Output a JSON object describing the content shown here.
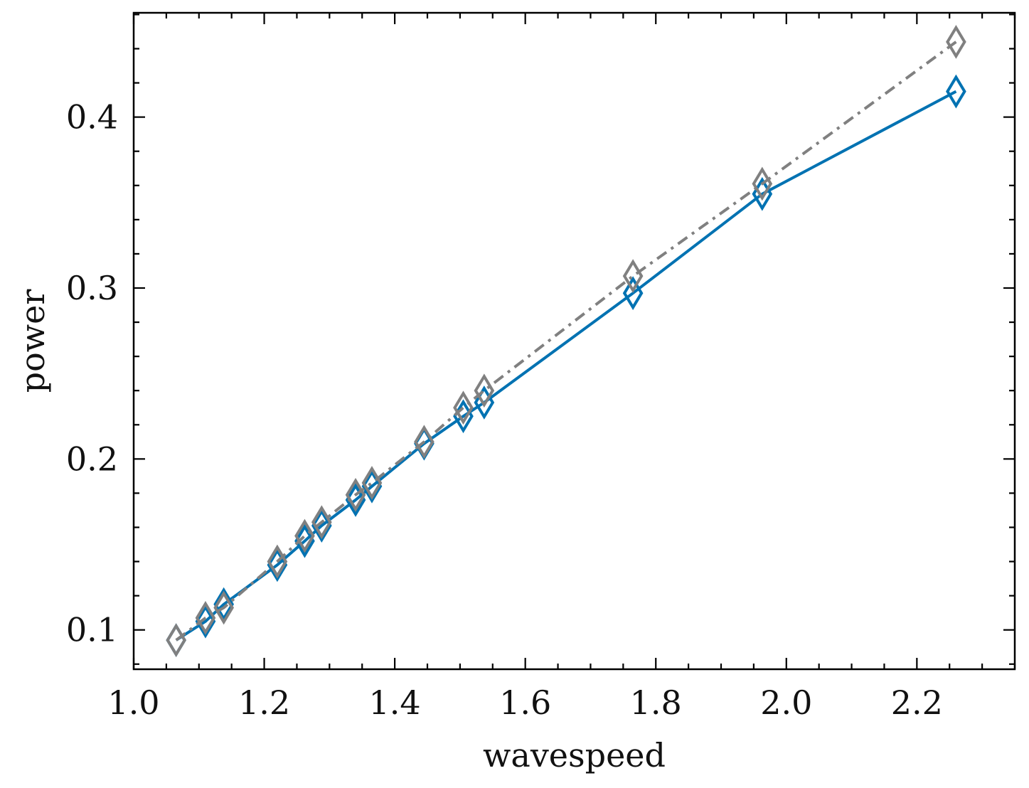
{
  "chart_data": {
    "type": "line",
    "title": "",
    "xlabel": "wavespeed",
    "ylabel": "power",
    "xlim": [
      1.0,
      2.35
    ],
    "ylim": [
      0.077,
      0.461
    ],
    "x_ticks": [
      "1.0",
      "1.2",
      "1.4",
      "1.6",
      "1.8",
      "2.0",
      "2.2"
    ],
    "y_ticks": [
      "0.1",
      "0.2",
      "0.3",
      "0.4"
    ],
    "grid": false,
    "series": [
      {
        "color": "#0072b2",
        "line_style": "solid",
        "marker": "diamond-open",
        "x": [
          1.065,
          1.11,
          1.138,
          1.22,
          1.262,
          1.288,
          1.34,
          1.365,
          1.445,
          1.505,
          1.537,
          1.765,
          1.963,
          2.26
        ],
        "y": [
          0.094,
          0.105,
          0.115,
          0.138,
          0.152,
          0.161,
          0.176,
          0.184,
          0.209,
          0.225,
          0.233,
          0.297,
          0.355,
          0.415
        ]
      },
      {
        "color": "#808080",
        "line_style": "dashdot",
        "marker": "diamond-open",
        "x": [
          1.065,
          1.11,
          1.138,
          1.22,
          1.262,
          1.288,
          1.34,
          1.365,
          1.445,
          1.505,
          1.537,
          1.765,
          1.963,
          2.26
        ],
        "y": [
          0.094,
          0.107,
          0.113,
          0.14,
          0.155,
          0.163,
          0.179,
          0.186,
          0.21,
          0.23,
          0.24,
          0.307,
          0.361,
          0.444
        ]
      }
    ]
  }
}
